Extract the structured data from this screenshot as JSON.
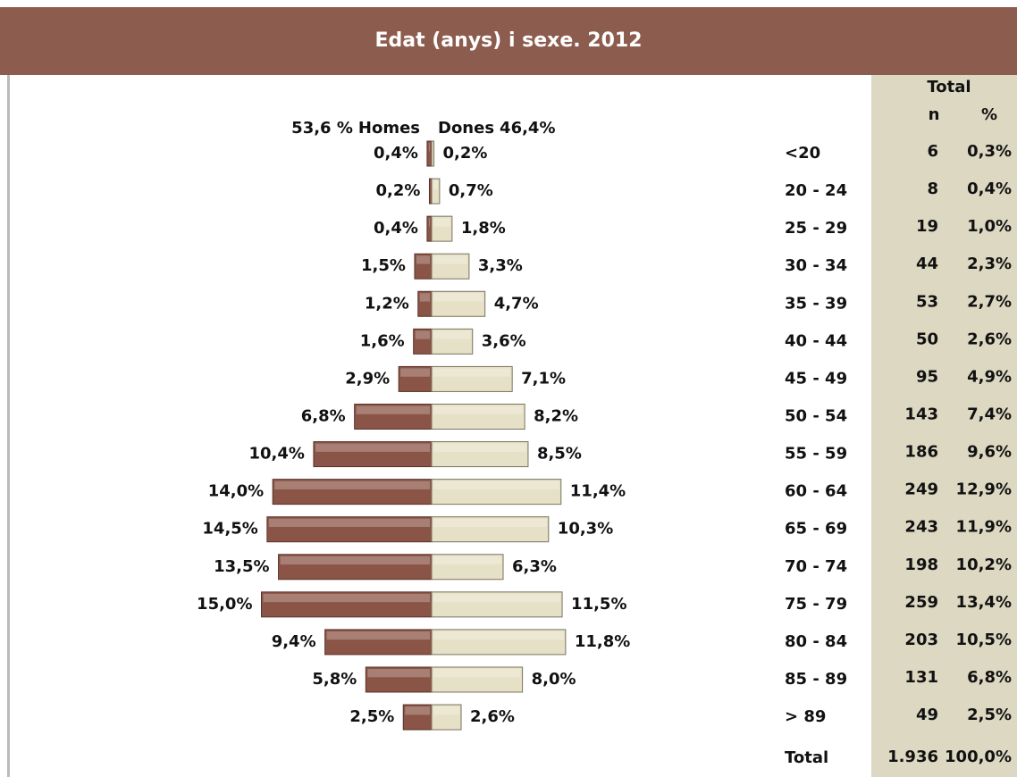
{
  "chart_data": {
    "type": "pyramid",
    "title": "Edat (anys) i sexe. 2012",
    "categories": [
      "<20",
      "20 - 24",
      "25 - 29",
      "30 - 34",
      "35 - 39",
      "40 - 44",
      "45 - 49",
      "50 - 54",
      "55 - 59",
      "60 - 64",
      "65 - 69",
      "70 - 74",
      "75 - 79",
      "80 - 84",
      "85 - 89",
      "> 89"
    ],
    "series": [
      {
        "name": "Homes",
        "share_label": "53,6 %",
        "color": "#8a5446",
        "values": [
          0.4,
          0.2,
          0.4,
          1.5,
          1.2,
          1.6,
          2.9,
          6.8,
          10.4,
          14.0,
          14.5,
          13.5,
          15.0,
          9.4,
          5.8,
          2.5
        ],
        "value_labels": [
          "0,4%",
          "0,2%",
          "0,4%",
          "1,5%",
          "1,2%",
          "1,6%",
          "2,9%",
          "6,8%",
          "10,4%",
          "14,0%",
          "14,5%",
          "13,5%",
          "15,0%",
          "9,4%",
          "5,8%",
          "2,5%"
        ]
      },
      {
        "name": "Dones",
        "share_label": "46,4%",
        "color": "#e6e0c6",
        "values": [
          0.2,
          0.7,
          1.8,
          3.3,
          4.7,
          3.6,
          7.1,
          8.2,
          8.5,
          11.4,
          10.3,
          6.3,
          11.5,
          11.8,
          8.0,
          2.6
        ],
        "value_labels": [
          "0,2%",
          "0,7%",
          "1,8%",
          "3,3%",
          "4,7%",
          "3,6%",
          "7,1%",
          "8,2%",
          "8,5%",
          "11,4%",
          "10,3%",
          "6,3%",
          "11,5%",
          "11,8%",
          "8,0%",
          "2,6%"
        ]
      }
    ],
    "table": {
      "header": "Total",
      "columns": [
        "n",
        "%"
      ],
      "rows": [
        [
          "6",
          "0,3%"
        ],
        [
          "8",
          "0,4%"
        ],
        [
          "19",
          "1,0%"
        ],
        [
          "44",
          "2,3%"
        ],
        [
          "53",
          "2,7%"
        ],
        [
          "50",
          "2,6%"
        ],
        [
          "95",
          "4,9%"
        ],
        [
          "143",
          "7,4%"
        ],
        [
          "186",
          "9,6%"
        ],
        [
          "249",
          "12,9%"
        ],
        [
          "243",
          "11,9%"
        ],
        [
          "198",
          "10,2%"
        ],
        [
          "259",
          "13,4%"
        ],
        [
          "203",
          "10,5%"
        ],
        [
          "131",
          "6,8%"
        ],
        [
          "49",
          "2,5%"
        ]
      ],
      "total_label": "Total",
      "total": [
        "1.936",
        "100,0%"
      ]
    }
  }
}
